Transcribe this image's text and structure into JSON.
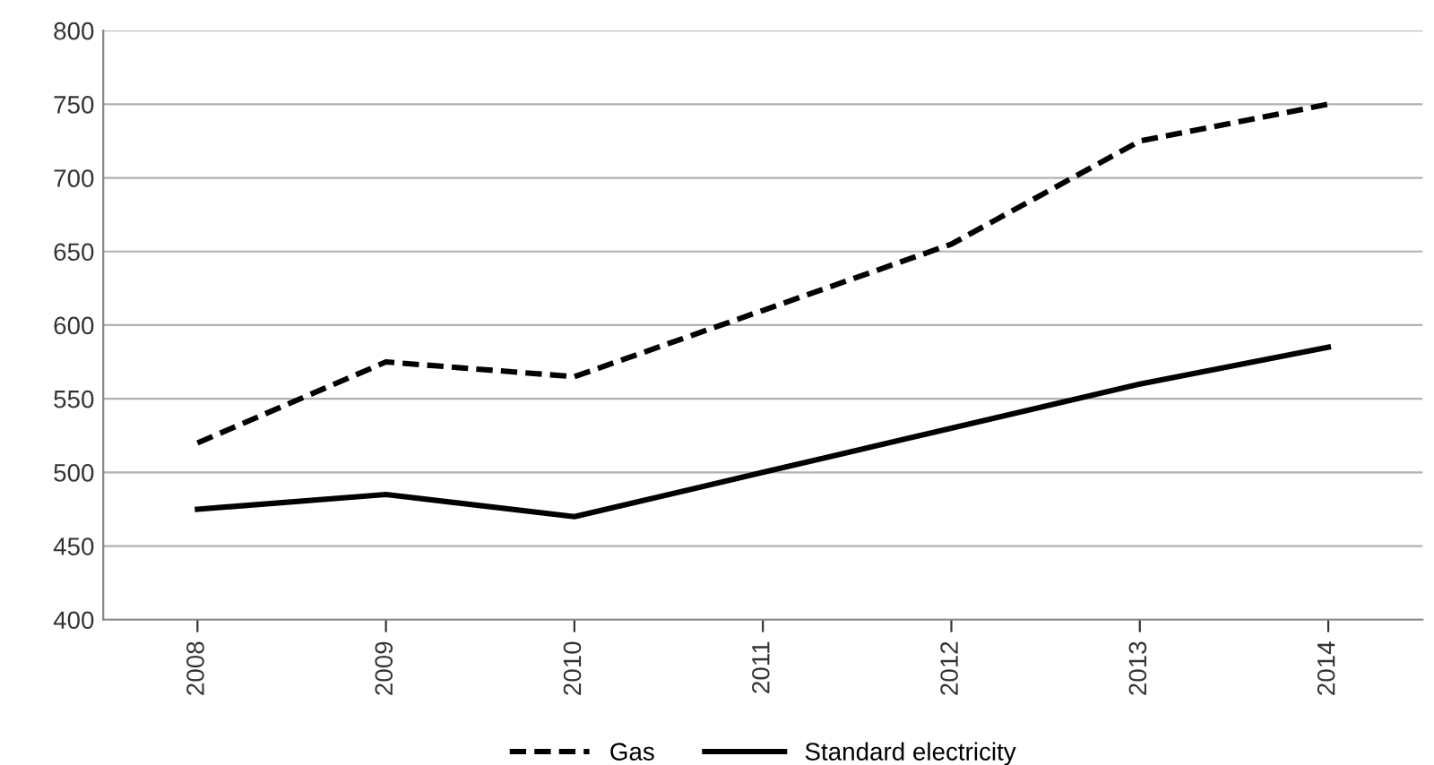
{
  "chart_data": {
    "type": "line",
    "categories": [
      "2008",
      "2009",
      "2010",
      "2011",
      "2012",
      "2013",
      "2014"
    ],
    "series": [
      {
        "name": "Gas",
        "color": "#000000",
        "line_style": "dashed",
        "values": [
          520,
          575,
          565,
          610,
          655,
          725,
          750
        ]
      },
      {
        "name": "Standard electricity",
        "color": "#000000",
        "line_style": "solid",
        "values": [
          475,
          485,
          470,
          500,
          530,
          560,
          585
        ]
      }
    ],
    "ylim": [
      400,
      800
    ],
    "yticks": [
      400,
      450,
      500,
      550,
      600,
      650,
      700,
      750,
      800
    ],
    "grid": "y",
    "legend": "bottom",
    "marker": "none"
  }
}
